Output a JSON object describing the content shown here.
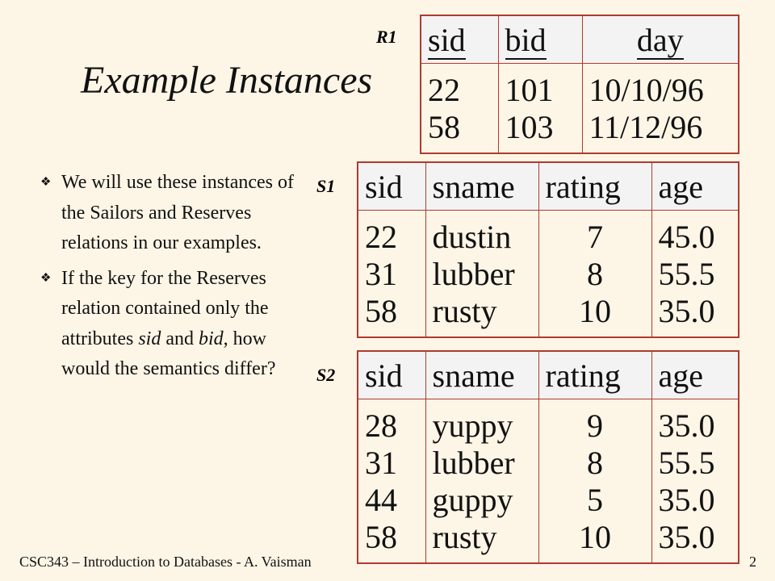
{
  "title": "Example Instances",
  "bullets": [
    {
      "parts": [
        "We will use these instances of the Sailors and Reserves relations in our examples."
      ]
    },
    {
      "parts": [
        "If the key for the Reserves relation contained only the attributes ",
        "sid",
        " and ",
        "bid",
        ", how would the semantics differ?"
      ]
    }
  ],
  "r1": {
    "label": "R1",
    "headers": [
      "sid",
      "bid",
      "day"
    ],
    "rows": [
      [
        "22",
        "101",
        "10/10/96"
      ],
      [
        "58",
        "103",
        "11/12/96"
      ]
    ]
  },
  "s1": {
    "label": "S1",
    "headers": [
      "sid",
      "sname",
      "rating",
      "age"
    ],
    "rows": [
      [
        "22",
        "dustin",
        "7",
        "45.0"
      ],
      [
        "31",
        "lubber",
        "8",
        "55.5"
      ],
      [
        "58",
        "rusty",
        "10",
        "35.0"
      ]
    ]
  },
  "s2": {
    "label": "S2",
    "headers": [
      "sid",
      "sname",
      "rating",
      "age"
    ],
    "rows": [
      [
        "28",
        "yuppy",
        "9",
        "35.0"
      ],
      [
        "31",
        "lubber",
        "8",
        "55.5"
      ],
      [
        "44",
        "guppy",
        "5",
        "35.0"
      ],
      [
        "58",
        "rusty",
        "10",
        "35.0"
      ]
    ]
  },
  "footer": {
    "course": "CSC343 – Introduction to Databases -  A. Vaisman",
    "page": "2"
  },
  "colors": {
    "background": "#fdf5e6",
    "table_border": "#b03a2e",
    "header_fill": "#f3f3f3"
  },
  "icons": {
    "bullet": "diamond-bullet-icon"
  }
}
